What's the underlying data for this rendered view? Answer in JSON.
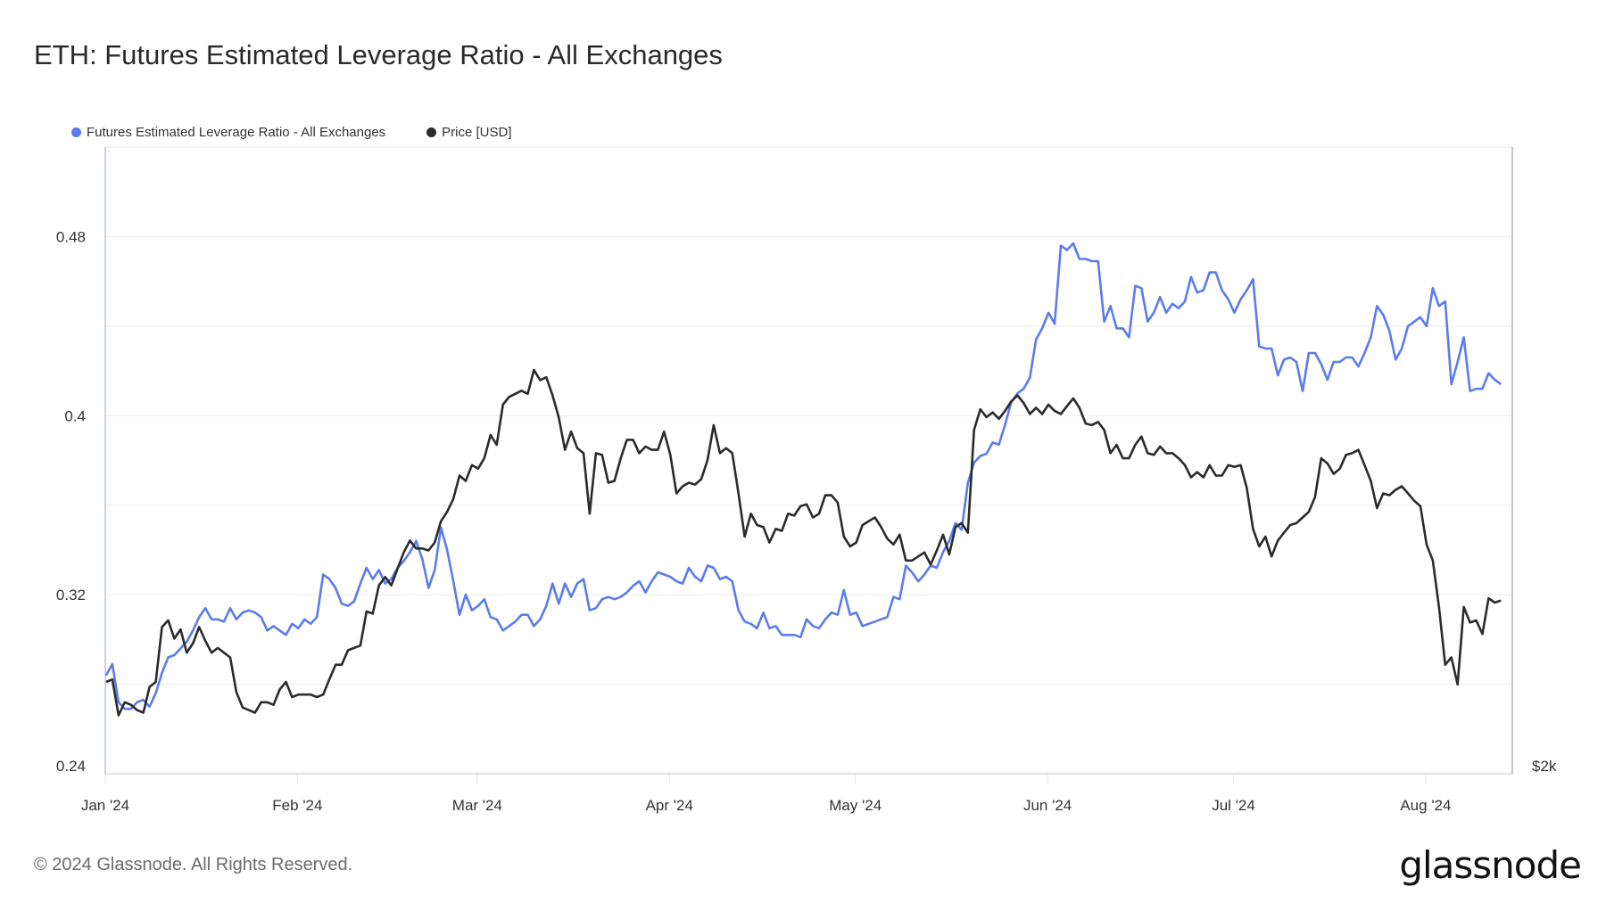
{
  "title": "ETH: Futures Estimated Leverage Ratio - All Exchanges",
  "footer": "© 2024 Glassnode. All Rights Reserved.",
  "logo_text": "glassnode",
  "chart_data": {
    "type": "line",
    "title": "ETH: Futures Estimated Leverage Ratio - All Exchanges",
    "legend_position": "top-left",
    "grid": true,
    "x_ticks": [
      {
        "date": "2024-01-01",
        "label": "Jan '24"
      },
      {
        "date": "2024-02-01",
        "label": "Feb '24"
      },
      {
        "date": "2024-03-01",
        "label": "Mar '24"
      },
      {
        "date": "2024-04-01",
        "label": "Apr '24"
      },
      {
        "date": "2024-05-01",
        "label": "May '24"
      },
      {
        "date": "2024-06-01",
        "label": "Jun '24"
      },
      {
        "date": "2024-07-01",
        "label": "Jul '24"
      },
      {
        "date": "2024-08-01",
        "label": "Aug '24"
      }
    ],
    "y_left": {
      "ticks": [
        0.24,
        0.32,
        0.4,
        0.48
      ],
      "tick_labels": [
        "0.24",
        "0.32",
        "0.4",
        "0.48"
      ],
      "ylim": [
        0.24,
        0.52
      ],
      "scale": "linear"
    },
    "y_right": {
      "ticks": [
        2000
      ],
      "tick_labels": [
        "$2k"
      ],
      "ylim": [
        2000,
        5840
      ],
      "scale": "log"
    },
    "x": [
      "2024-01-01",
      "2024-01-02",
      "2024-01-03",
      "2024-01-04",
      "2024-01-05",
      "2024-01-06",
      "2024-01-07",
      "2024-01-08",
      "2024-01-09",
      "2024-01-10",
      "2024-01-11",
      "2024-01-12",
      "2024-01-13",
      "2024-01-14",
      "2024-01-15",
      "2024-01-16",
      "2024-01-17",
      "2024-01-18",
      "2024-01-19",
      "2024-01-20",
      "2024-01-21",
      "2024-01-22",
      "2024-01-23",
      "2024-01-24",
      "2024-01-25",
      "2024-01-26",
      "2024-01-27",
      "2024-01-28",
      "2024-01-29",
      "2024-01-30",
      "2024-01-31",
      "2024-02-01",
      "2024-02-02",
      "2024-02-03",
      "2024-02-04",
      "2024-02-05",
      "2024-02-06",
      "2024-02-07",
      "2024-02-08",
      "2024-02-09",
      "2024-02-10",
      "2024-02-11",
      "2024-02-12",
      "2024-02-13",
      "2024-02-14",
      "2024-02-15",
      "2024-02-16",
      "2024-02-17",
      "2024-02-18",
      "2024-02-19",
      "2024-02-20",
      "2024-02-21",
      "2024-02-22",
      "2024-02-23",
      "2024-02-24",
      "2024-02-25",
      "2024-02-26",
      "2024-02-27",
      "2024-02-28",
      "2024-02-29",
      "2024-03-01",
      "2024-03-02",
      "2024-03-03",
      "2024-03-04",
      "2024-03-05",
      "2024-03-06",
      "2024-03-07",
      "2024-03-08",
      "2024-03-09",
      "2024-03-10",
      "2024-03-11",
      "2024-03-12",
      "2024-03-13",
      "2024-03-14",
      "2024-03-15",
      "2024-03-16",
      "2024-03-17",
      "2024-03-18",
      "2024-03-19",
      "2024-03-20",
      "2024-03-21",
      "2024-03-22",
      "2024-03-23",
      "2024-03-24",
      "2024-03-25",
      "2024-03-26",
      "2024-03-27",
      "2024-03-28",
      "2024-03-29",
      "2024-03-30",
      "2024-03-31",
      "2024-04-01",
      "2024-04-02",
      "2024-04-03",
      "2024-04-04",
      "2024-04-05",
      "2024-04-06",
      "2024-04-07",
      "2024-04-08",
      "2024-04-09",
      "2024-04-10",
      "2024-04-11",
      "2024-04-12",
      "2024-04-13",
      "2024-04-14",
      "2024-04-15",
      "2024-04-16",
      "2024-04-17",
      "2024-04-18",
      "2024-04-19",
      "2024-04-20",
      "2024-04-21",
      "2024-04-22",
      "2024-04-23",
      "2024-04-24",
      "2024-04-25",
      "2024-04-26",
      "2024-04-27",
      "2024-04-28",
      "2024-04-29",
      "2024-04-30",
      "2024-05-01",
      "2024-05-02",
      "2024-05-03",
      "2024-05-04",
      "2024-05-05",
      "2024-05-06",
      "2024-05-07",
      "2024-05-08",
      "2024-05-09",
      "2024-05-10",
      "2024-05-11",
      "2024-05-12",
      "2024-05-13",
      "2024-05-14",
      "2024-05-15",
      "2024-05-16",
      "2024-05-17",
      "2024-05-18",
      "2024-05-19",
      "2024-05-20",
      "2024-05-21",
      "2024-05-22",
      "2024-05-23",
      "2024-05-24",
      "2024-05-25",
      "2024-05-26",
      "2024-05-27",
      "2024-05-28",
      "2024-05-29",
      "2024-05-30",
      "2024-05-31",
      "2024-06-01",
      "2024-06-02",
      "2024-06-03",
      "2024-06-04",
      "2024-06-05",
      "2024-06-06",
      "2024-06-07",
      "2024-06-08",
      "2024-06-09",
      "2024-06-10",
      "2024-06-11",
      "2024-06-12",
      "2024-06-13",
      "2024-06-14",
      "2024-06-15",
      "2024-06-16",
      "2024-06-17",
      "2024-06-18",
      "2024-06-19",
      "2024-06-20",
      "2024-06-21",
      "2024-06-22",
      "2024-06-23",
      "2024-06-24",
      "2024-06-25",
      "2024-06-26",
      "2024-06-27",
      "2024-06-28",
      "2024-06-29",
      "2024-06-30",
      "2024-07-01",
      "2024-07-02",
      "2024-07-03",
      "2024-07-04",
      "2024-07-05",
      "2024-07-06",
      "2024-07-07",
      "2024-07-08",
      "2024-07-09",
      "2024-07-10",
      "2024-07-11",
      "2024-07-12",
      "2024-07-13",
      "2024-07-14",
      "2024-07-15",
      "2024-07-16",
      "2024-07-17",
      "2024-07-18",
      "2024-07-19",
      "2024-07-20",
      "2024-07-21",
      "2024-07-22",
      "2024-07-23",
      "2024-07-24",
      "2024-07-25",
      "2024-07-26",
      "2024-07-27",
      "2024-07-28",
      "2024-07-29",
      "2024-07-30",
      "2024-07-31",
      "2024-08-01",
      "2024-08-02",
      "2024-08-03",
      "2024-08-04",
      "2024-08-05",
      "2024-08-06",
      "2024-08-07",
      "2024-08-08",
      "2024-08-09",
      "2024-08-10",
      "2024-08-11",
      "2024-08-12",
      "2024-08-13"
    ],
    "series": [
      {
        "name": "Futures Estimated Leverage Ratio - All Exchanges",
        "axis": "left",
        "color": "#5b7cec",
        "values": [
          0.284,
          0.289,
          0.272,
          0.269,
          0.269,
          0.272,
          0.273,
          0.27,
          0.276,
          0.285,
          0.292,
          0.293,
          0.296,
          0.299,
          0.304,
          0.31,
          0.314,
          0.309,
          0.309,
          0.308,
          0.314,
          0.309,
          0.312,
          0.313,
          0.312,
          0.31,
          0.304,
          0.306,
          0.304,
          0.302,
          0.307,
          0.305,
          0.309,
          0.307,
          0.31,
          0.329,
          0.327,
          0.323,
          0.316,
          0.315,
          0.317,
          0.325,
          0.332,
          0.327,
          0.331,
          0.325,
          0.327,
          0.332,
          0.335,
          0.339,
          0.344,
          0.336,
          0.323,
          0.331,
          0.35,
          0.34,
          0.326,
          0.311,
          0.32,
          0.313,
          0.315,
          0.318,
          0.31,
          0.309,
          0.304,
          0.306,
          0.308,
          0.311,
          0.311,
          0.306,
          0.309,
          0.315,
          0.325,
          0.316,
          0.325,
          0.319,
          0.325,
          0.327,
          0.313,
          0.314,
          0.318,
          0.319,
          0.318,
          0.319,
          0.321,
          0.324,
          0.326,
          0.321,
          0.326,
          0.33,
          0.329,
          0.328,
          0.326,
          0.325,
          0.332,
          0.328,
          0.326,
          0.333,
          0.332,
          0.327,
          0.328,
          0.326,
          0.313,
          0.308,
          0.307,
          0.305,
          0.312,
          0.305,
          0.306,
          0.302,
          0.302,
          0.302,
          0.301,
          0.309,
          0.306,
          0.305,
          0.309,
          0.312,
          0.311,
          0.322,
          0.311,
          0.312,
          0.306,
          0.307,
          0.308,
          0.309,
          0.31,
          0.319,
          0.318,
          0.333,
          0.33,
          0.326,
          0.329,
          0.333,
          0.332,
          0.339,
          0.344,
          0.352,
          0.349,
          0.37,
          0.379,
          0.382,
          0.383,
          0.388,
          0.387,
          0.396,
          0.406,
          0.41,
          0.412,
          0.417,
          0.434,
          0.439,
          0.446,
          0.441,
          0.476,
          0.474,
          0.477,
          0.47,
          0.47,
          0.469,
          0.469,
          0.442,
          0.449,
          0.439,
          0.439,
          0.435,
          0.458,
          0.457,
          0.442,
          0.446,
          0.453,
          0.446,
          0.45,
          0.448,
          0.451,
          0.462,
          0.455,
          0.456,
          0.464,
          0.464,
          0.456,
          0.452,
          0.446,
          0.452,
          0.456,
          0.461,
          0.431,
          0.43,
          0.43,
          0.418,
          0.425,
          0.426,
          0.424,
          0.411,
          0.428,
          0.428,
          0.423,
          0.416,
          0.424,
          0.424,
          0.426,
          0.426,
          0.422,
          0.428,
          0.435,
          0.449,
          0.445,
          0.438,
          0.425,
          0.43,
          0.44,
          0.442,
          0.444,
          0.44,
          0.457,
          0.449,
          0.451,
          0.414,
          0.424,
          0.435,
          0.411,
          0.412,
          0.412,
          0.419,
          0.416,
          0.414
        ]
      },
      {
        "name": "Price [USD]",
        "axis": "right",
        "color": "#2b2b2b",
        "values": [
          2340,
          2350,
          2210,
          2260,
          2250,
          2230,
          2220,
          2320,
          2340,
          2570,
          2600,
          2520,
          2560,
          2460,
          2500,
          2570,
          2510,
          2460,
          2480,
          2460,
          2440,
          2300,
          2240,
          2230,
          2220,
          2260,
          2260,
          2250,
          2310,
          2340,
          2280,
          2290,
          2290,
          2290,
          2280,
          2290,
          2350,
          2410,
          2410,
          2470,
          2480,
          2490,
          2640,
          2630,
          2760,
          2800,
          2760,
          2840,
          2920,
          2980,
          2940,
          2940,
          2930,
          2970,
          3080,
          3130,
          3200,
          3330,
          3300,
          3390,
          3370,
          3430,
          3570,
          3510,
          3760,
          3810,
          3830,
          3850,
          3830,
          3990,
          3920,
          3940,
          3820,
          3680,
          3480,
          3590,
          3490,
          3460,
          3120,
          3460,
          3450,
          3290,
          3300,
          3430,
          3540,
          3540,
          3460,
          3500,
          3480,
          3480,
          3590,
          3450,
          3230,
          3270,
          3290,
          3280,
          3310,
          3420,
          3630,
          3460,
          3490,
          3460,
          3230,
          3000,
          3120,
          3060,
          3050,
          2970,
          3040,
          3030,
          3120,
          3110,
          3160,
          3170,
          3100,
          3120,
          3220,
          3220,
          3180,
          3000,
          2950,
          2970,
          3060,
          3080,
          3100,
          3050,
          2990,
          2960,
          3010,
          2880,
          2880,
          2900,
          2920,
          2860,
          2930,
          3010,
          2910,
          3050,
          3070,
          3020,
          3600,
          3730,
          3680,
          3710,
          3670,
          3720,
          3780,
          3820,
          3770,
          3700,
          3740,
          3700,
          3760,
          3720,
          3700,
          3750,
          3800,
          3740,
          3640,
          3630,
          3650,
          3600,
          3460,
          3510,
          3430,
          3430,
          3510,
          3560,
          3460,
          3450,
          3500,
          3460,
          3460,
          3430,
          3390,
          3320,
          3350,
          3320,
          3390,
          3330,
          3330,
          3390,
          3380,
          3390,
          3260,
          3040,
          2950,
          3000,
          2900,
          2980,
          3020,
          3060,
          3070,
          3100,
          3130,
          3210,
          3430,
          3400,
          3340,
          3370,
          3450,
          3460,
          3480,
          3390,
          3300,
          3150,
          3230,
          3220,
          3250,
          3270,
          3230,
          3190,
          3160,
          2960,
          2880,
          2660,
          2410,
          2440,
          2330,
          2660,
          2590,
          2600,
          2540,
          2700,
          2680,
          2690
        ]
      }
    ]
  }
}
